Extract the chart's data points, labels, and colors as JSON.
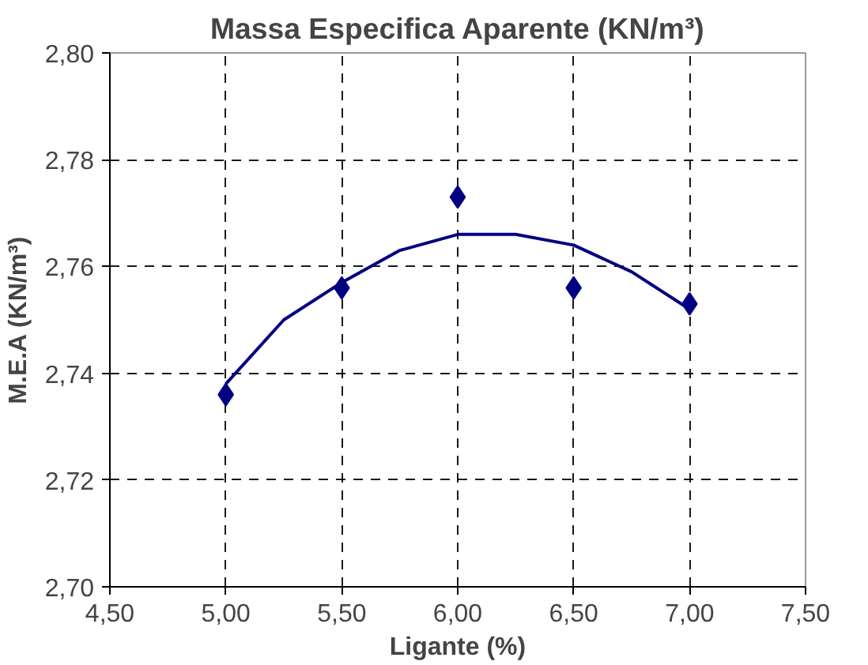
{
  "chart_data": {
    "type": "scatter",
    "title": "Massa Especifica Aparente (KN/m³)",
    "xlabel": "Ligante (%)",
    "ylabel": "M.E.A (KN/m³)",
    "xlim": [
      4.5,
      7.5
    ],
    "xticks": [
      {
        "value": 4.5,
        "label": "4,50"
      },
      {
        "value": 5.0,
        "label": "5,00"
      },
      {
        "value": 5.5,
        "label": "5,50"
      },
      {
        "value": 6.0,
        "label": "6,00"
      },
      {
        "value": 6.5,
        "label": "6,50"
      },
      {
        "value": 7.0,
        "label": "7,00"
      },
      {
        "value": 7.5,
        "label": "7,50"
      }
    ],
    "ylim": [
      2.7,
      2.8
    ],
    "yticks": [
      {
        "value": 2.7,
        "label": "2,70"
      },
      {
        "value": 2.72,
        "label": "2,72"
      },
      {
        "value": 2.74,
        "label": "2,74"
      },
      {
        "value": 2.76,
        "label": "2,76"
      },
      {
        "value": 2.78,
        "label": "2,78"
      },
      {
        "value": 2.8,
        "label": "2,80"
      }
    ],
    "grid": true,
    "series": [
      {
        "marker": "diamond",
        "color": "#000080",
        "x": [
          5.0,
          5.5,
          6.0,
          6.5,
          7.0
        ],
        "values": [
          2.736,
          2.756,
          2.773,
          2.756,
          2.753
        ]
      },
      {
        "type": "line",
        "line_style": "solid",
        "color": "#000080",
        "x": [
          5.0,
          5.25,
          5.5,
          5.75,
          6.0,
          6.25,
          6.5,
          6.75,
          7.0
        ],
        "values": [
          2.738,
          2.75,
          2.757,
          2.763,
          2.766,
          2.766,
          2.764,
          2.759,
          2.752
        ]
      }
    ]
  }
}
